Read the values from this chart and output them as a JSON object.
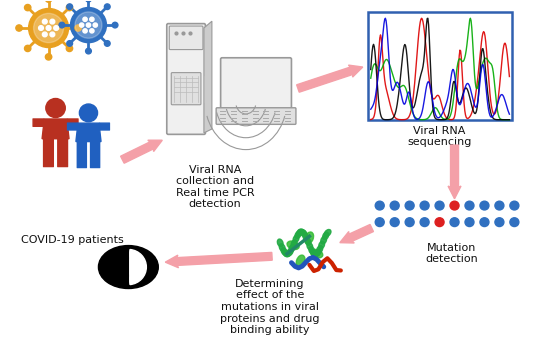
{
  "bg_color": "#ffffff",
  "labels": {
    "covid": "COVID-19 patients",
    "viral_rna": "Viral RNA\ncollection and\nReal time PCR\ndetection",
    "sequencing": "Viral RNA\nsequencing",
    "mutation": "Mutation\ndetection",
    "determining": "Determining\neffect of the\nmutations in viral\nproteins and drug\nbinding ability"
  },
  "person1_color": "#b83020",
  "person2_color": "#2060c0",
  "virus1_color": "#e8a020",
  "virus2_color": "#3070c0",
  "arrow_color": "#f4a0a8",
  "seq_colors": [
    "#dd0000",
    "#00aa00",
    "#000000",
    "#0000dd"
  ],
  "dot_blue": "#3070c0",
  "dot_red": "#dd2020",
  "label_fontsize": 8.0,
  "label_color": "#111111",
  "sequencer_edge": "#999999",
  "sequencer_face": "#f0f0f0"
}
